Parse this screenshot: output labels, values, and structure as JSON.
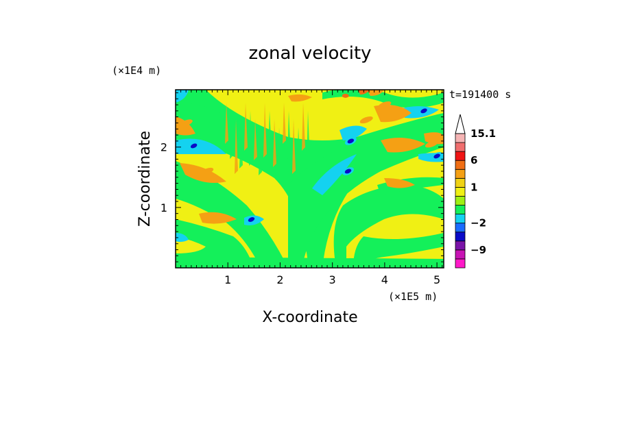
{
  "chart_data": {
    "type": "heatmap",
    "title": "zonal velocity",
    "xlabel": "X-coordinate",
    "ylabel": "Z-coordinate",
    "x_unit_label": "(×1E5 m)",
    "y_unit_label": "(×1E4 m)",
    "time_label": "t=191400 s",
    "xlim": [
      0,
      5.13
    ],
    "ylim": [
      0,
      2.95
    ],
    "x_ticks": [
      {
        "value": 1,
        "label": "1"
      },
      {
        "value": 2,
        "label": "2"
      },
      {
        "value": 3,
        "label": "3"
      },
      {
        "value": 4,
        "label": "4"
      },
      {
        "value": 5,
        "label": "5"
      }
    ],
    "y_ticks": [
      {
        "value": 1,
        "label": "1"
      },
      {
        "value": 2,
        "label": "2"
      }
    ],
    "colorbar": {
      "levels_low_to_high": [
        {
          "upper": -12,
          "color": "#ff19c8"
        },
        {
          "upper": -9,
          "color": "#c814b4"
        },
        {
          "upper": -6,
          "color": "#7a14a8"
        },
        {
          "upper": -4,
          "color": "#0a0ac8"
        },
        {
          "upper": -2,
          "color": "#1a6cff"
        },
        {
          "upper": -1,
          "color": "#14d2f0"
        },
        {
          "upper": 0,
          "color": "#14f05a"
        },
        {
          "upper": 0.5,
          "color": "#9ef014"
        },
        {
          "upper": 1,
          "color": "#f0f014"
        },
        {
          "upper": 2,
          "color": "#f0d214"
        },
        {
          "upper": 3,
          "color": "#f5a014"
        },
        {
          "upper": 6,
          "color": "#f06e14"
        },
        {
          "upper": 9,
          "color": "#f01414"
        },
        {
          "upper": 12,
          "color": "#f06e6e"
        },
        {
          "upper": 15.1,
          "color": "#f5b4b4"
        }
      ],
      "labels": [
        {
          "value": 15.1,
          "label": "15.1"
        },
        {
          "value": 6,
          "label": "6"
        },
        {
          "value": 1,
          "label": "1"
        },
        {
          "value": -2,
          "label": "−2"
        },
        {
          "value": -9,
          "label": "−9"
        }
      ],
      "extend": "max"
    },
    "field_features": [
      {
        "kind": "yellow-band",
        "desc": "broad positive zonal flow filling lower-right and upper-left"
      },
      {
        "kind": "green-band",
        "desc": "near-zero flow bands tilted from upper-left to lower-right and lower-left to upper-right"
      },
      {
        "kind": "blue-core",
        "x": 0.35,
        "z": 2.02,
        "value": -4
      },
      {
        "kind": "blue-core",
        "x": 1.45,
        "z": 0.8,
        "value": -4
      },
      {
        "kind": "blue-core",
        "x": 3.3,
        "z": 1.6,
        "value": -4
      },
      {
        "kind": "blue-core",
        "x": 3.35,
        "z": 2.1,
        "value": -4
      },
      {
        "kind": "blue-core",
        "x": 4.75,
        "z": 2.6,
        "value": -4
      },
      {
        "kind": "blue-core",
        "x": 5.0,
        "z": 1.85,
        "value": -4
      },
      {
        "kind": "orange-core",
        "x": 0.6,
        "z": 1.6,
        "value": 3
      },
      {
        "kind": "orange-core",
        "x": 0.2,
        "z": 2.4,
        "value": 3
      },
      {
        "kind": "orange-core",
        "x": 3.65,
        "z": 2.45,
        "value": 3
      },
      {
        "kind": "orange-core",
        "x": 4.9,
        "z": 2.05,
        "value": 3
      },
      {
        "kind": "orange-core",
        "x": 4.0,
        "z": 2.7,
        "value": 3
      },
      {
        "kind": "red-core",
        "x": 3.25,
        "z": 2.85,
        "value": 6
      }
    ]
  }
}
